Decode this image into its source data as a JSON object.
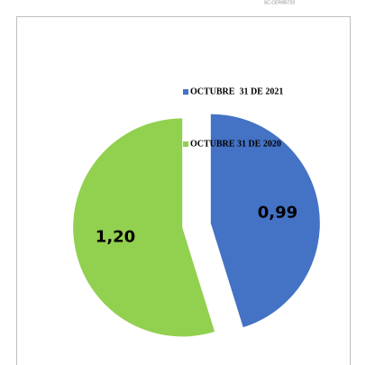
{
  "code": "SC-CER/85720",
  "chart_data": {
    "type": "pie",
    "categories": [
      "OCTUBRE  31 DE 2021",
      "OCTUBRE 31 DE 2020"
    ],
    "values": [
      0.99,
      1.2
    ],
    "value_labels": [
      "0,99",
      "1,20"
    ],
    "colors": [
      "#4472c4",
      "#92d050"
    ],
    "legend": "top-right"
  }
}
